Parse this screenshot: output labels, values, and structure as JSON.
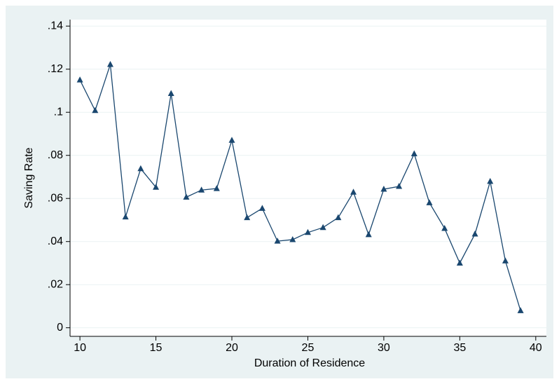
{
  "chart_data": {
    "type": "line",
    "x_label": "Duration of Residence",
    "y_label": "Saving Rate",
    "x": [
      10,
      11,
      12,
      13,
      14,
      15,
      16,
      17,
      18,
      19,
      20,
      21,
      22,
      23,
      24,
      25,
      26,
      27,
      28,
      29,
      30,
      31,
      32,
      33,
      34,
      35,
      36,
      37,
      38,
      39
    ],
    "series": [
      {
        "color": "#1a476f",
        "values": [
          0.115,
          0.1008,
          0.1222,
          0.0514,
          0.0738,
          0.0652,
          0.1087,
          0.0606,
          0.0639,
          0.0646,
          0.087,
          0.0511,
          0.0554,
          0.0402,
          0.0409,
          0.0442,
          0.0465,
          0.0511,
          0.0629,
          0.0432,
          0.0643,
          0.0656,
          0.0807,
          0.058,
          0.0461,
          0.03,
          0.0435,
          0.0679,
          0.031,
          0.0079
        ]
      }
    ],
    "xlim": [
      9.35,
      40.7
    ],
    "ylim": [
      -0.004,
      0.143
    ],
    "xticks": [
      10,
      15,
      20,
      25,
      30,
      35,
      40
    ],
    "yticks": [
      0,
      {
        "value": 0.02,
        "label": ".02"
      },
      {
        "value": 0.04,
        "label": ".04"
      },
      {
        "value": 0.06,
        "label": ".06"
      },
      {
        "value": 0.08,
        "label": ".08"
      },
      {
        "value": 0.1,
        "label": ".1"
      },
      {
        "value": 0.12,
        "label": ".12"
      },
      {
        "value": 0.14,
        "label": ".14"
      }
    ],
    "grid": true
  }
}
